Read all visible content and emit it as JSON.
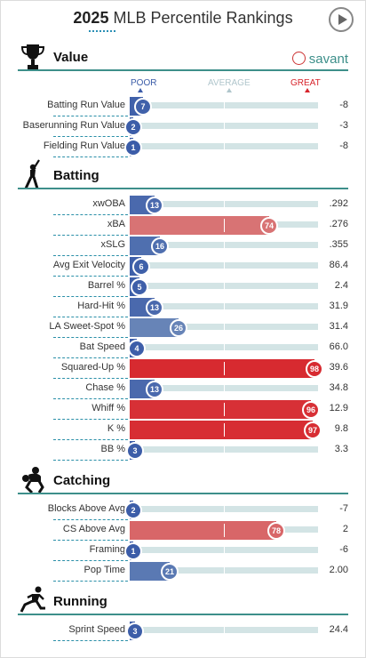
{
  "header": {
    "year": "2025",
    "title": "MLB Percentile Rankings"
  },
  "colors": {
    "poor": "#3b5ca8",
    "average": "#b0c6cc",
    "great": "#d7242b",
    "accent": "#3d8f8a"
  },
  "scale": {
    "poor": "POOR",
    "average": "AVERAGE",
    "great": "GREAT"
  },
  "sections": [
    {
      "key": "value",
      "title": "Value",
      "icon": "trophy-icon",
      "brand": "savant",
      "rows": [
        {
          "name": "Batting Run Value",
          "pct": 7,
          "value": "-8"
        },
        {
          "name": "Baserunning Run Value",
          "pct": 2,
          "value": "-3"
        },
        {
          "name": "Fielding Run Value",
          "pct": 1,
          "value": "-8"
        }
      ]
    },
    {
      "key": "batting",
      "title": "Batting",
      "icon": "batter-icon",
      "rows": [
        {
          "name": "xwOBA",
          "pct": 13,
          "value": ".292"
        },
        {
          "name": "xBA",
          "pct": 74,
          "value": ".276"
        },
        {
          "name": "xSLG",
          "pct": 16,
          "value": ".355"
        },
        {
          "name": "Avg Exit Velocity",
          "pct": 6,
          "value": "86.4"
        },
        {
          "name": "Barrel %",
          "pct": 5,
          "value": "2.4"
        },
        {
          "name": "Hard-Hit %",
          "pct": 13,
          "value": "31.9"
        },
        {
          "name": "LA Sweet-Spot %",
          "pct": 26,
          "value": "31.4"
        },
        {
          "name": "Bat Speed",
          "pct": 4,
          "value": "66.0"
        },
        {
          "name": "Squared-Up %",
          "pct": 98,
          "value": "39.6"
        },
        {
          "name": "Chase %",
          "pct": 13,
          "value": "34.8"
        },
        {
          "name": "Whiff %",
          "pct": 96,
          "value": "12.9"
        },
        {
          "name": "K %",
          "pct": 97,
          "value": "9.8"
        },
        {
          "name": "BB %",
          "pct": 3,
          "value": "3.3"
        }
      ]
    },
    {
      "key": "catching",
      "title": "Catching",
      "icon": "catcher-icon",
      "rows": [
        {
          "name": "Blocks Above Avg",
          "pct": 2,
          "value": "-7"
        },
        {
          "name": "CS Above Avg",
          "pct": 78,
          "value": "2"
        },
        {
          "name": "Framing",
          "pct": 1,
          "value": "-6"
        },
        {
          "name": "Pop Time",
          "pct": 21,
          "value": "2.00"
        }
      ]
    },
    {
      "key": "running",
      "title": "Running",
      "icon": "runner-icon",
      "rows": [
        {
          "name": "Sprint Speed",
          "pct": 3,
          "value": "24.4"
        }
      ]
    }
  ]
}
